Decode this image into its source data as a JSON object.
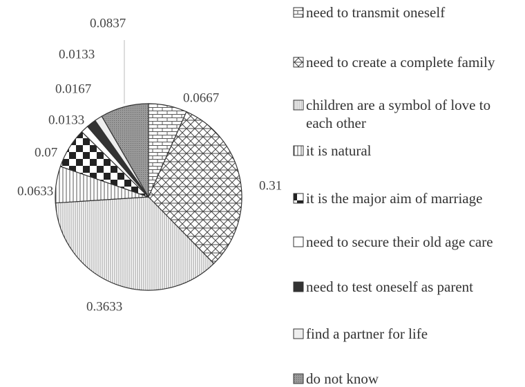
{
  "chart_data": {
    "type": "pie",
    "series": [
      {
        "name": "need to transmit oneself"
      },
      {
        "name": "need to create a complete family"
      },
      {
        "name": "children are a symbol of love to each other"
      },
      {
        "name": "it is natural"
      },
      {
        "name": "it is the major aim of marriage"
      },
      {
        "name": "need to secure their old age care"
      },
      {
        "name": "need to test oneself as parent"
      },
      {
        "name": "find a partner for life"
      },
      {
        "name": "do not know"
      }
    ],
    "values": [
      0.0667,
      0.31,
      0.3633,
      0.0633,
      0.07,
      0.0133,
      0.0167,
      0.0133,
      0.0837
    ]
  }
}
